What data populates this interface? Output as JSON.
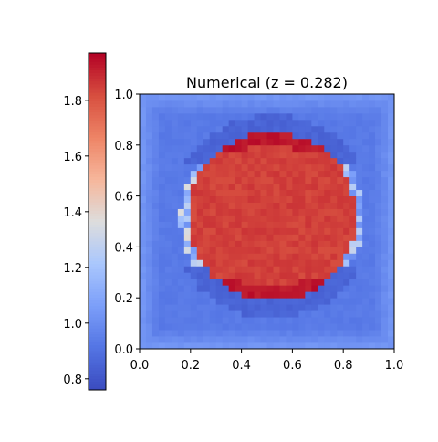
{
  "chart_data": {
    "type": "heatmap",
    "title": "Numerical (z = 0.282)",
    "xlabel": "",
    "ylabel": "",
    "xlim": [
      0.0,
      1.0
    ],
    "ylim": [
      0.0,
      1.0
    ],
    "x_ticks": [
      "0.0",
      "0.2",
      "0.4",
      "0.6",
      "0.8",
      "1.0"
    ],
    "y_ticks": [
      "0.0",
      "0.2",
      "0.4",
      "0.6",
      "0.8",
      "1.0"
    ],
    "grid_size": 40,
    "colormap": "coolwarm",
    "colorbar": {
      "range": [
        0.76,
        1.97
      ],
      "ticks": [
        "0.8",
        "1.0",
        "1.2",
        "1.4",
        "1.6",
        "1.8"
      ],
      "placement": "left"
    },
    "field": {
      "inside_value": 1.85,
      "outside_value": 0.93,
      "circle_center": [
        0.52,
        0.52
      ],
      "circle_radius": 0.33,
      "peak_value": 1.96,
      "min_value": 0.77
    }
  }
}
